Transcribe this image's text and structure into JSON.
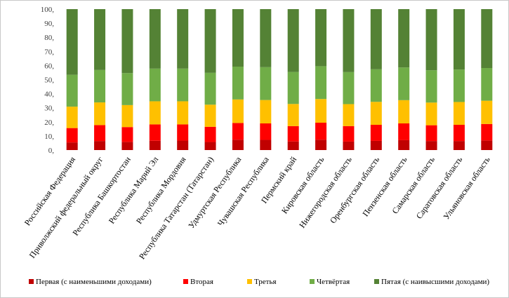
{
  "chart_data": {
    "type": "bar",
    "stacked": true,
    "percent_stacked": true,
    "categories": [
      "Российская Федерация",
      "Приволжский федеральный округ",
      "Республика Башкортостан",
      "Республика Марий Эл",
      "Республика Мордовия",
      "Республика Татарстан (Татарстан)",
      "Удмуртская Республика",
      "Чувашская Республика",
      "Пермский край",
      "Кировская область",
      "Нижегородская область",
      "Оренбургская область",
      "Пензенская область",
      "Самарская область",
      "Саратовская область",
      "Ульяновская область"
    ],
    "series": [
      {
        "name": "Первая (с наименьшими доходами)",
        "color": "#c00000",
        "values": [
          5.4,
          6.4,
          5.8,
          6.6,
          6.7,
          5.7,
          7.3,
          7.2,
          6.1,
          7.3,
          6.0,
          6.5,
          7.0,
          6.4,
          6.4,
          6.8
        ]
      },
      {
        "name": "Вторая",
        "color": "#ff0000",
        "values": [
          10.2,
          11.3,
          10.5,
          11.6,
          11.5,
          10.8,
          11.9,
          11.7,
          10.9,
          12.1,
          11.0,
          11.4,
          11.9,
          11.2,
          11.5,
          11.7
        ]
      },
      {
        "name": "Третья",
        "color": "#ffc000",
        "values": [
          15.2,
          16.1,
          15.6,
          16.4,
          16.4,
          15.7,
          16.7,
          16.6,
          15.7,
          16.8,
          15.6,
          16.3,
          16.5,
          16.1,
          16.2,
          16.5
        ]
      },
      {
        "name": "Четвёртая",
        "color": "#70ad47",
        "values": [
          22.6,
          23.0,
          22.7,
          23.2,
          23.2,
          22.6,
          23.3,
          23.3,
          22.7,
          23.3,
          22.7,
          23.1,
          23.2,
          22.9,
          23.0,
          23.2
        ]
      },
      {
        "name": "Пятая (с наивысшими доходами)",
        "color": "#548235",
        "values": [
          46.6,
          43.2,
          45.4,
          42.2,
          42.2,
          45.2,
          40.8,
          41.2,
          44.6,
          40.5,
          44.7,
          42.7,
          41.4,
          43.4,
          42.9,
          41.8
        ]
      }
    ],
    "ylim": [
      0,
      100
    ],
    "y_ticks": [
      "0,",
      "10,",
      "20,",
      "30,",
      "40,",
      "50,",
      "60,",
      "70,",
      "80,",
      "90,",
      "100,"
    ],
    "grid": false,
    "legend_position": "bottom",
    "title": "",
    "xlabel": "",
    "ylabel": ""
  }
}
